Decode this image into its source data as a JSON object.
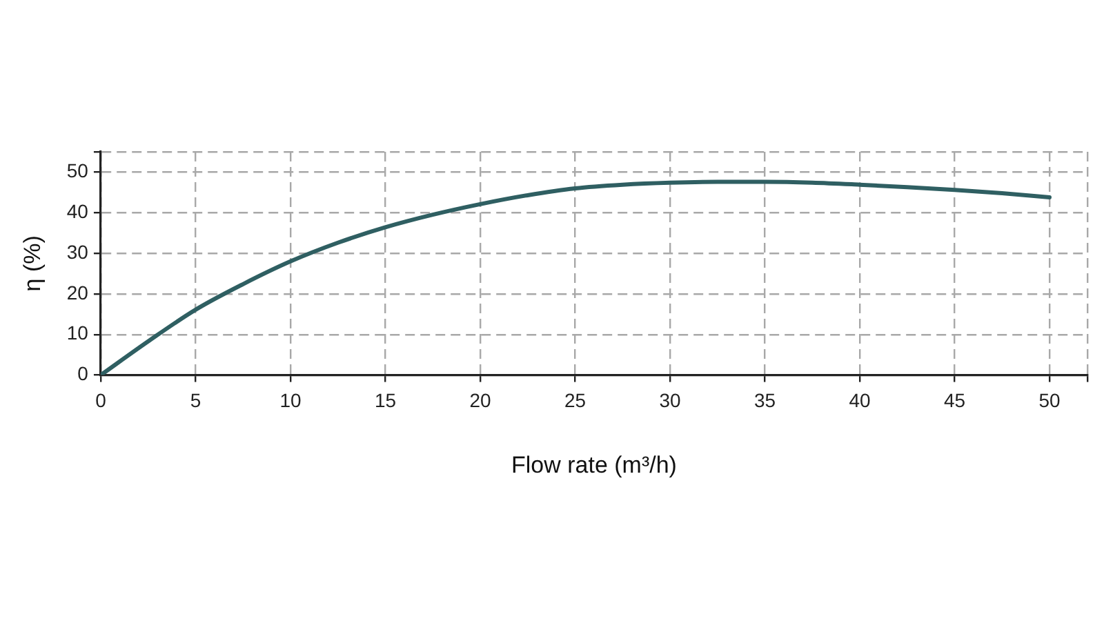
{
  "chart_data": {
    "type": "line",
    "xlabel": "Flow rate (m³/h)",
    "ylabel": "η (%)",
    "x": [
      0,
      2.5,
      5,
      7.5,
      10,
      12.5,
      15,
      17.5,
      20,
      22.5,
      25,
      27.5,
      30,
      32.5,
      35,
      37.5,
      40,
      42.5,
      45,
      47.5,
      50
    ],
    "series": [
      {
        "color": "#2f5f62",
        "values": [
          0,
          8.3,
          16.1,
          22.4,
          28.0,
          32.6,
          36.4,
          39.5,
          42.1,
          44.3,
          46.0,
          46.9,
          47.4,
          47.6,
          47.6,
          47.4,
          46.9,
          46.3,
          45.6,
          44.8,
          43.8
        ]
      }
    ],
    "xlim": [
      0,
      52
    ],
    "ylim": [
      0,
      55
    ],
    "xticks": [
      0,
      5,
      10,
      15,
      20,
      25,
      30,
      35,
      40,
      45,
      50,
      {
        "value": 52,
        "label": null
      }
    ],
    "yticks": [
      0,
      10,
      20,
      30,
      40,
      50,
      {
        "value": 55,
        "label": null
      }
    ],
    "grid": true,
    "marker": "none",
    "line_style": "solid"
  }
}
